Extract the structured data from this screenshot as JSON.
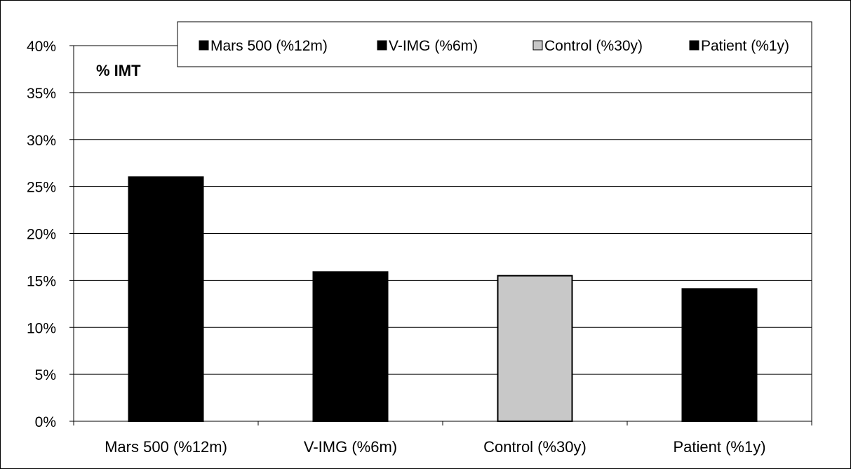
{
  "chart_data": {
    "type": "bar",
    "title": "",
    "panel_label": "% IMT",
    "xlabel": "",
    "ylabel": "",
    "categories": [
      "Mars 500 (%12m)",
      "V-IMG (%6m)",
      "Control (%30y)",
      "Patient (%1y)"
    ],
    "values": [
      26,
      15.9,
      15.5,
      14.1
    ],
    "bar_colors": [
      "#000000",
      "#000000",
      "#c8c8c8",
      "#000000"
    ],
    "ylim": [
      0,
      40
    ],
    "yticks": [
      0,
      5,
      10,
      15,
      20,
      25,
      30,
      35,
      40
    ],
    "ytick_format": "{v}%",
    "grid": true,
    "legend": {
      "placement": "top",
      "entries": [
        {
          "label": "Mars 500 (%12m)",
          "color": "#000000"
        },
        {
          "label": "V-IMG (%6m)",
          "color": "#000000"
        },
        {
          "label": "Control (%30y)",
          "color": "#c8c8c8"
        },
        {
          "label": "Patient (%1y)",
          "color": "#000000"
        }
      ]
    }
  }
}
